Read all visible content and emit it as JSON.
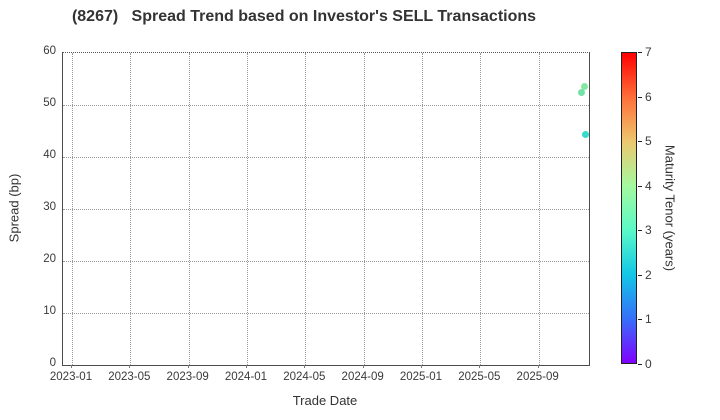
{
  "window": {
    "background": "#ffffff"
  },
  "chart_data": {
    "type": "scatter",
    "title": "(8267)   Spread Trend based on Investor's SELL Transactions",
    "xlabel": "Trade Date",
    "ylabel": "Spread (bp)",
    "x_tick_labels": [
      "2023-01",
      "2023-05",
      "2023-09",
      "2024-01",
      "2024-05",
      "2024-09",
      "2025-01",
      "2025-05",
      "2025-09"
    ],
    "y_ticks": [
      0,
      10,
      20,
      30,
      40,
      50,
      60
    ],
    "ylim": [
      0,
      60
    ],
    "grid": true,
    "legend": "none",
    "points": [
      {
        "date": "2025-11-29",
        "spread": 52.4,
        "maturity": 3.4,
        "color": "#6ae2a1"
      },
      {
        "date": "2025-12-05",
        "spread": 53.6,
        "maturity": 3.5,
        "color": "#7de79c"
      },
      {
        "date": "2025-12-08",
        "spread": 44.4,
        "maturity": 2.6,
        "color": "#2dd8c6"
      }
    ],
    "colorbar": {
      "label": "Maturity Tenor (years)",
      "range": [
        0,
        7
      ],
      "ticks": [
        0,
        1,
        2,
        3,
        4,
        5,
        6,
        7
      ],
      "colormap": "rainbow",
      "stops": [
        "#8000ff",
        "#376ff9",
        "#12c7e6",
        "#5bf9c7",
        "#a4f99f",
        "#edc76f",
        "#ff6f39",
        "#ff0000"
      ]
    }
  },
  "colors": {
    "title_text": "#333333",
    "tick_text": "#3a3a3a",
    "axis_line": "#4d4d4d",
    "grid_line": "#999999"
  }
}
